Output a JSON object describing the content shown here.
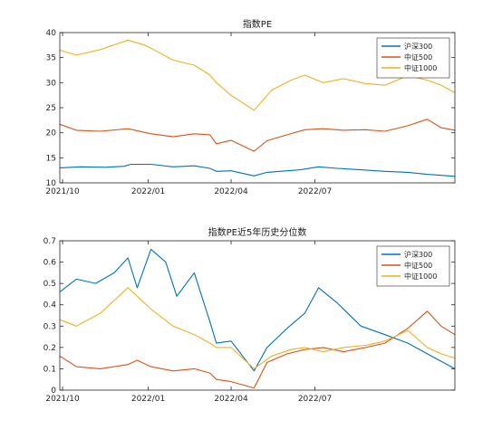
{
  "colors": {
    "hs300": "#0072BD",
    "zz500": "#D95319",
    "zz1000": "#EDB120",
    "axis": "#262626",
    "frame": "#262626"
  },
  "chart_data": [
    {
      "type": "line",
      "title": "指数PE",
      "x_tick_labels": [
        "2021/10",
        "2022/01",
        "2022/04",
        "2022/07"
      ],
      "x_tick_dates": [
        "2021-09-30",
        "2022-01-01",
        "2022-04-01",
        "2022-07-01"
      ],
      "x_range": [
        "2021-09-27",
        "2022-11-30"
      ],
      "ylim": [
        10,
        40
      ],
      "y_ticks": [
        10,
        15,
        20,
        25,
        30,
        35,
        40
      ],
      "legend_position": "top-right",
      "series": [
        {
          "name": "沪深300",
          "color": "#0072BD",
          "dates": [
            "2021-09-27",
            "2021-10-20",
            "2021-11-15",
            "2021-12-06",
            "2021-12-13",
            "2022-01-04",
            "2022-01-28",
            "2022-02-20",
            "2022-03-09",
            "2022-03-16",
            "2022-04-01",
            "2022-04-26",
            "2022-05-10",
            "2022-06-01",
            "2022-06-15",
            "2022-07-05",
            "2022-07-25",
            "2022-08-20",
            "2022-09-15",
            "2022-10-10",
            "2022-10-31",
            "2022-11-30"
          ],
          "values": [
            13.0,
            13.2,
            13.1,
            13.3,
            13.7,
            13.7,
            13.2,
            13.4,
            12.9,
            12.3,
            12.4,
            11.4,
            12.1,
            12.4,
            12.6,
            13.2,
            12.9,
            12.6,
            12.3,
            12.1,
            11.7,
            11.3
          ]
        },
        {
          "name": "中证500",
          "color": "#D95319",
          "dates": [
            "2021-09-27",
            "2021-10-15",
            "2021-11-10",
            "2021-12-10",
            "2022-01-04",
            "2022-01-28",
            "2022-02-20",
            "2022-03-09",
            "2022-03-16",
            "2022-04-01",
            "2022-04-26",
            "2022-05-10",
            "2022-06-01",
            "2022-06-20",
            "2022-07-10",
            "2022-08-01",
            "2022-08-25",
            "2022-09-15",
            "2022-10-10",
            "2022-10-31",
            "2022-11-15",
            "2022-11-30"
          ],
          "values": [
            21.7,
            20.5,
            20.3,
            20.8,
            19.8,
            19.2,
            19.8,
            19.6,
            17.8,
            18.5,
            16.3,
            18.4,
            19.6,
            20.6,
            20.8,
            20.5,
            20.6,
            20.3,
            21.4,
            22.7,
            21.0,
            20.5
          ]
        },
        {
          "name": "中证1000",
          "color": "#EDB120",
          "dates": [
            "2021-09-27",
            "2021-10-15",
            "2021-11-10",
            "2021-12-10",
            "2021-12-28",
            "2022-01-04",
            "2022-01-28",
            "2022-02-20",
            "2022-03-09",
            "2022-03-16",
            "2022-04-01",
            "2022-04-26",
            "2022-05-15",
            "2022-06-05",
            "2022-06-20",
            "2022-07-10",
            "2022-08-01",
            "2022-08-25",
            "2022-09-15",
            "2022-10-10",
            "2022-10-31",
            "2022-11-15",
            "2022-11-30"
          ],
          "values": [
            36.5,
            35.5,
            36.6,
            38.5,
            37.5,
            36.9,
            34.5,
            33.5,
            31.5,
            30.0,
            27.5,
            24.5,
            28.5,
            30.5,
            31.5,
            30.0,
            30.8,
            29.8,
            29.5,
            31.4,
            30.5,
            29.5,
            28.0
          ]
        }
      ]
    },
    {
      "type": "line",
      "title": "指数PE近5年历史分位数",
      "x_tick_labels": [
        "2021/10",
        "2022/01",
        "2022/04",
        "2022/07"
      ],
      "x_tick_dates": [
        "2021-09-30",
        "2022-01-01",
        "2022-04-01",
        "2022-07-01"
      ],
      "x_range": [
        "2021-09-27",
        "2022-11-30"
      ],
      "ylim": [
        0,
        0.7
      ],
      "y_ticks": [
        0,
        0.1,
        0.2,
        0.3,
        0.4,
        0.5,
        0.6,
        0.7
      ],
      "legend_position": "top-right",
      "series": [
        {
          "name": "沪深300",
          "color": "#0072BD",
          "dates": [
            "2021-09-27",
            "2021-10-15",
            "2021-11-05",
            "2021-11-25",
            "2021-12-10",
            "2021-12-20",
            "2022-01-04",
            "2022-01-20",
            "2022-02-01",
            "2022-02-20",
            "2022-03-09",
            "2022-03-16",
            "2022-04-01",
            "2022-04-26",
            "2022-05-10",
            "2022-06-01",
            "2022-06-20",
            "2022-07-05",
            "2022-07-25",
            "2022-08-20",
            "2022-09-15",
            "2022-10-10",
            "2022-10-31",
            "2022-11-30"
          ],
          "values": [
            0.46,
            0.52,
            0.5,
            0.55,
            0.62,
            0.48,
            0.66,
            0.6,
            0.44,
            0.55,
            0.32,
            0.22,
            0.23,
            0.09,
            0.2,
            0.29,
            0.36,
            0.48,
            0.41,
            0.3,
            0.26,
            0.22,
            0.17,
            0.1
          ]
        },
        {
          "name": "中证500",
          "color": "#D95319",
          "dates": [
            "2021-09-27",
            "2021-10-15",
            "2021-11-10",
            "2021-12-10",
            "2021-12-20",
            "2022-01-04",
            "2022-01-28",
            "2022-02-20",
            "2022-03-09",
            "2022-03-16",
            "2022-04-01",
            "2022-04-26",
            "2022-05-10",
            "2022-06-01",
            "2022-06-20",
            "2022-07-10",
            "2022-08-01",
            "2022-08-25",
            "2022-09-15",
            "2022-10-10",
            "2022-10-31",
            "2022-11-15",
            "2022-11-30"
          ],
          "values": [
            0.16,
            0.11,
            0.1,
            0.12,
            0.14,
            0.11,
            0.09,
            0.1,
            0.08,
            0.05,
            0.04,
            0.01,
            0.13,
            0.17,
            0.19,
            0.2,
            0.18,
            0.2,
            0.22,
            0.29,
            0.37,
            0.3,
            0.26
          ]
        },
        {
          "name": "中证1000",
          "color": "#EDB120",
          "dates": [
            "2021-09-27",
            "2021-10-15",
            "2021-11-10",
            "2021-12-10",
            "2021-12-20",
            "2022-01-04",
            "2022-01-28",
            "2022-02-20",
            "2022-03-09",
            "2022-03-16",
            "2022-04-01",
            "2022-04-26",
            "2022-05-15",
            "2022-06-05",
            "2022-06-20",
            "2022-07-10",
            "2022-08-01",
            "2022-08-25",
            "2022-09-15",
            "2022-10-10",
            "2022-10-31",
            "2022-11-15",
            "2022-11-30"
          ],
          "values": [
            0.33,
            0.3,
            0.36,
            0.48,
            0.44,
            0.38,
            0.3,
            0.26,
            0.22,
            0.2,
            0.2,
            0.1,
            0.16,
            0.19,
            0.2,
            0.18,
            0.2,
            0.21,
            0.23,
            0.28,
            0.2,
            0.17,
            0.15
          ]
        }
      ]
    }
  ]
}
